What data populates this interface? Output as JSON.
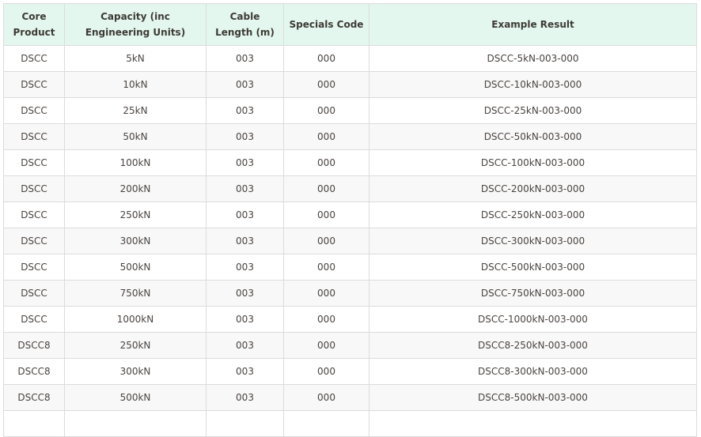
{
  "table": {
    "headers": [
      "Core Product",
      "Capacity (inc Engineering Units)",
      "Cable Length (m)",
      "Specials Code",
      "Example Result"
    ],
    "rows": [
      [
        "DSCC",
        "5kN",
        "003",
        "000",
        "DSCC-5kN-003-000"
      ],
      [
        "DSCC",
        "10kN",
        "003",
        "000",
        "DSCC-10kN-003-000"
      ],
      [
        "DSCC",
        "25kN",
        "003",
        "000",
        "DSCC-25kN-003-000"
      ],
      [
        "DSCC",
        "50kN",
        "003",
        "000",
        "DSCC-50kN-003-000"
      ],
      [
        "DSCC",
        "100kN",
        "003",
        "000",
        "DSCC-100kN-003-000"
      ],
      [
        "DSCC",
        "200kN",
        "003",
        "000",
        "DSCC-200kN-003-000"
      ],
      [
        "DSCC",
        "250kN",
        "003",
        "000",
        "DSCC-250kN-003-000"
      ],
      [
        "DSCC",
        "300kN",
        "003",
        "000",
        "DSCC-300kN-003-000"
      ],
      [
        "DSCC",
        "500kN",
        "003",
        "000",
        "DSCC-500kN-003-000"
      ],
      [
        "DSCC",
        "750kN",
        "003",
        "000",
        "DSCC-750kN-003-000"
      ],
      [
        "DSCC",
        "1000kN",
        "003",
        "000",
        "DSCC-1000kN-003-000"
      ],
      [
        "DSCC8",
        "250kN",
        "003",
        "000",
        "DSCC8-250kN-003-000"
      ],
      [
        "DSCC8",
        "300kN",
        "003",
        "000",
        "DSCC8-300kN-003-000"
      ],
      [
        "DSCC8",
        "500kN",
        "003",
        "000",
        "DSCC8-500kN-003-000"
      ],
      [
        "",
        "",
        "",
        "",
        ""
      ]
    ]
  },
  "colors": {
    "header_bg": "#e3f7ee",
    "stripe_bg": "#f8f8f8",
    "border": "#dcdcdc"
  }
}
